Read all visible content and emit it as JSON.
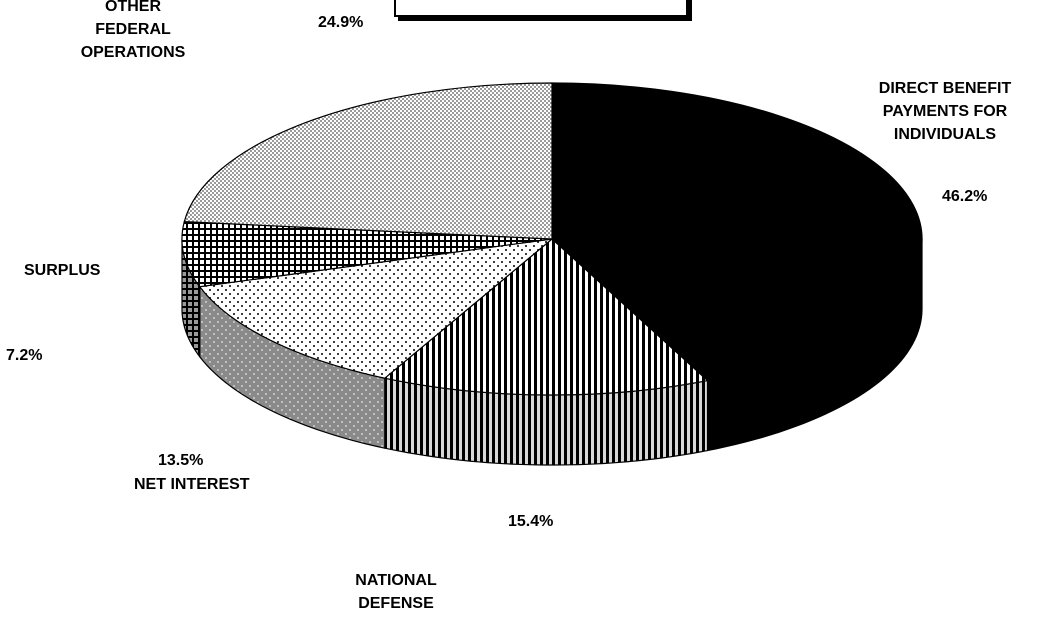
{
  "chart_data": {
    "type": "pie",
    "title": "",
    "slices": [
      {
        "label": "DIRECT BENEFIT PAYMENTS FOR INDIVIDUALS",
        "label_lines": [
          "DIRECT BENEFIT",
          "PAYMENTS FOR",
          "INDIVIDUALS"
        ],
        "value": 46.2,
        "value_text": "46.2%",
        "fill": "solid-black"
      },
      {
        "label": "NATIONAL DEFENSE",
        "label_lines": [
          "NATIONAL",
          "DEFENSE"
        ],
        "value": 15.4,
        "value_text": "15.4%",
        "fill": "vertical-stripes"
      },
      {
        "label": "NET INTEREST",
        "label_lines": [
          "NET INTEREST"
        ],
        "value": 13.5,
        "value_text": "13.5%",
        "fill": "dots"
      },
      {
        "label": "SURPLUS",
        "label_lines": [
          "SURPLUS"
        ],
        "value": 7.2,
        "value_text": "7.2%",
        "fill": "grid"
      },
      {
        "label": "OTHER FEDERAL OPERATIONS",
        "label_lines": [
          "OTHER",
          "FEDERAL",
          "OPERATIONS"
        ],
        "value": 24.9,
        "value_text": "24.9%",
        "fill": "fine-dots"
      }
    ],
    "three_d": true,
    "legend": "none"
  },
  "colors": {
    "ink": "#000000",
    "background": "#ffffff"
  }
}
